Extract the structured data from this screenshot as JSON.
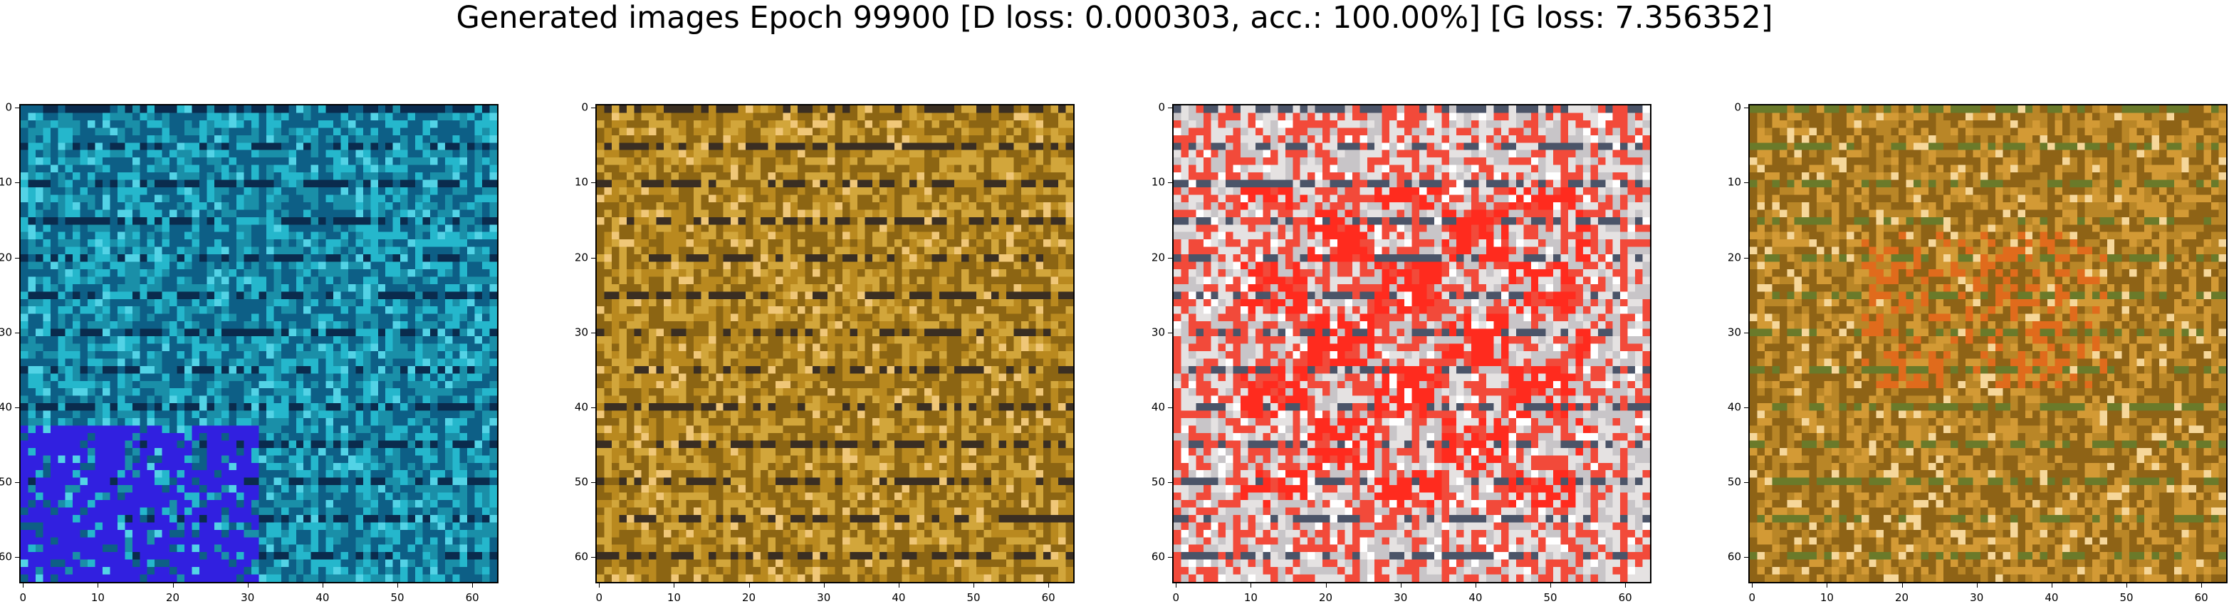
{
  "title": "Generated images Epoch 99900 [D loss: 0.000303, acc.: 100.00%] [G loss: 7.356352]",
  "axis_ticks": {
    "x": [
      "0",
      "10",
      "20",
      "30",
      "40",
      "50",
      "60"
    ],
    "y": [
      "0",
      "10",
      "20",
      "30",
      "40",
      "50",
      "60"
    ]
  },
  "image_grid_size": 64,
  "panels": [
    {
      "name": "sample-1",
      "palette": [
        "#1a8fa8",
        "#25b7cc",
        "#0d5f86",
        "#2a3fd8",
        "#3120e0",
        "#0a2b4d",
        "#53d3e6",
        "#ee6a78"
      ]
    },
    {
      "name": "sample-2",
      "palette": [
        "#b9891f",
        "#d2a63b",
        "#8c6513",
        "#e7d6b6",
        "#5c3b0a",
        "#3a2e22",
        "#f0c778",
        "#c4b7b0"
      ]
    },
    {
      "name": "sample-3",
      "palette": [
        "#c8c5c8",
        "#e5e2e2",
        "#f24a3a",
        "#ff2b1e",
        "#9aa2ac",
        "#4b5468",
        "#ffffff",
        "#d7a07b"
      ]
    },
    {
      "name": "sample-4",
      "palette": [
        "#b98627",
        "#d39a35",
        "#8e6316",
        "#e06b1c",
        "#4a3412",
        "#6a7a2a",
        "#f6d79a",
        "#2b1d12"
      ]
    }
  ]
}
